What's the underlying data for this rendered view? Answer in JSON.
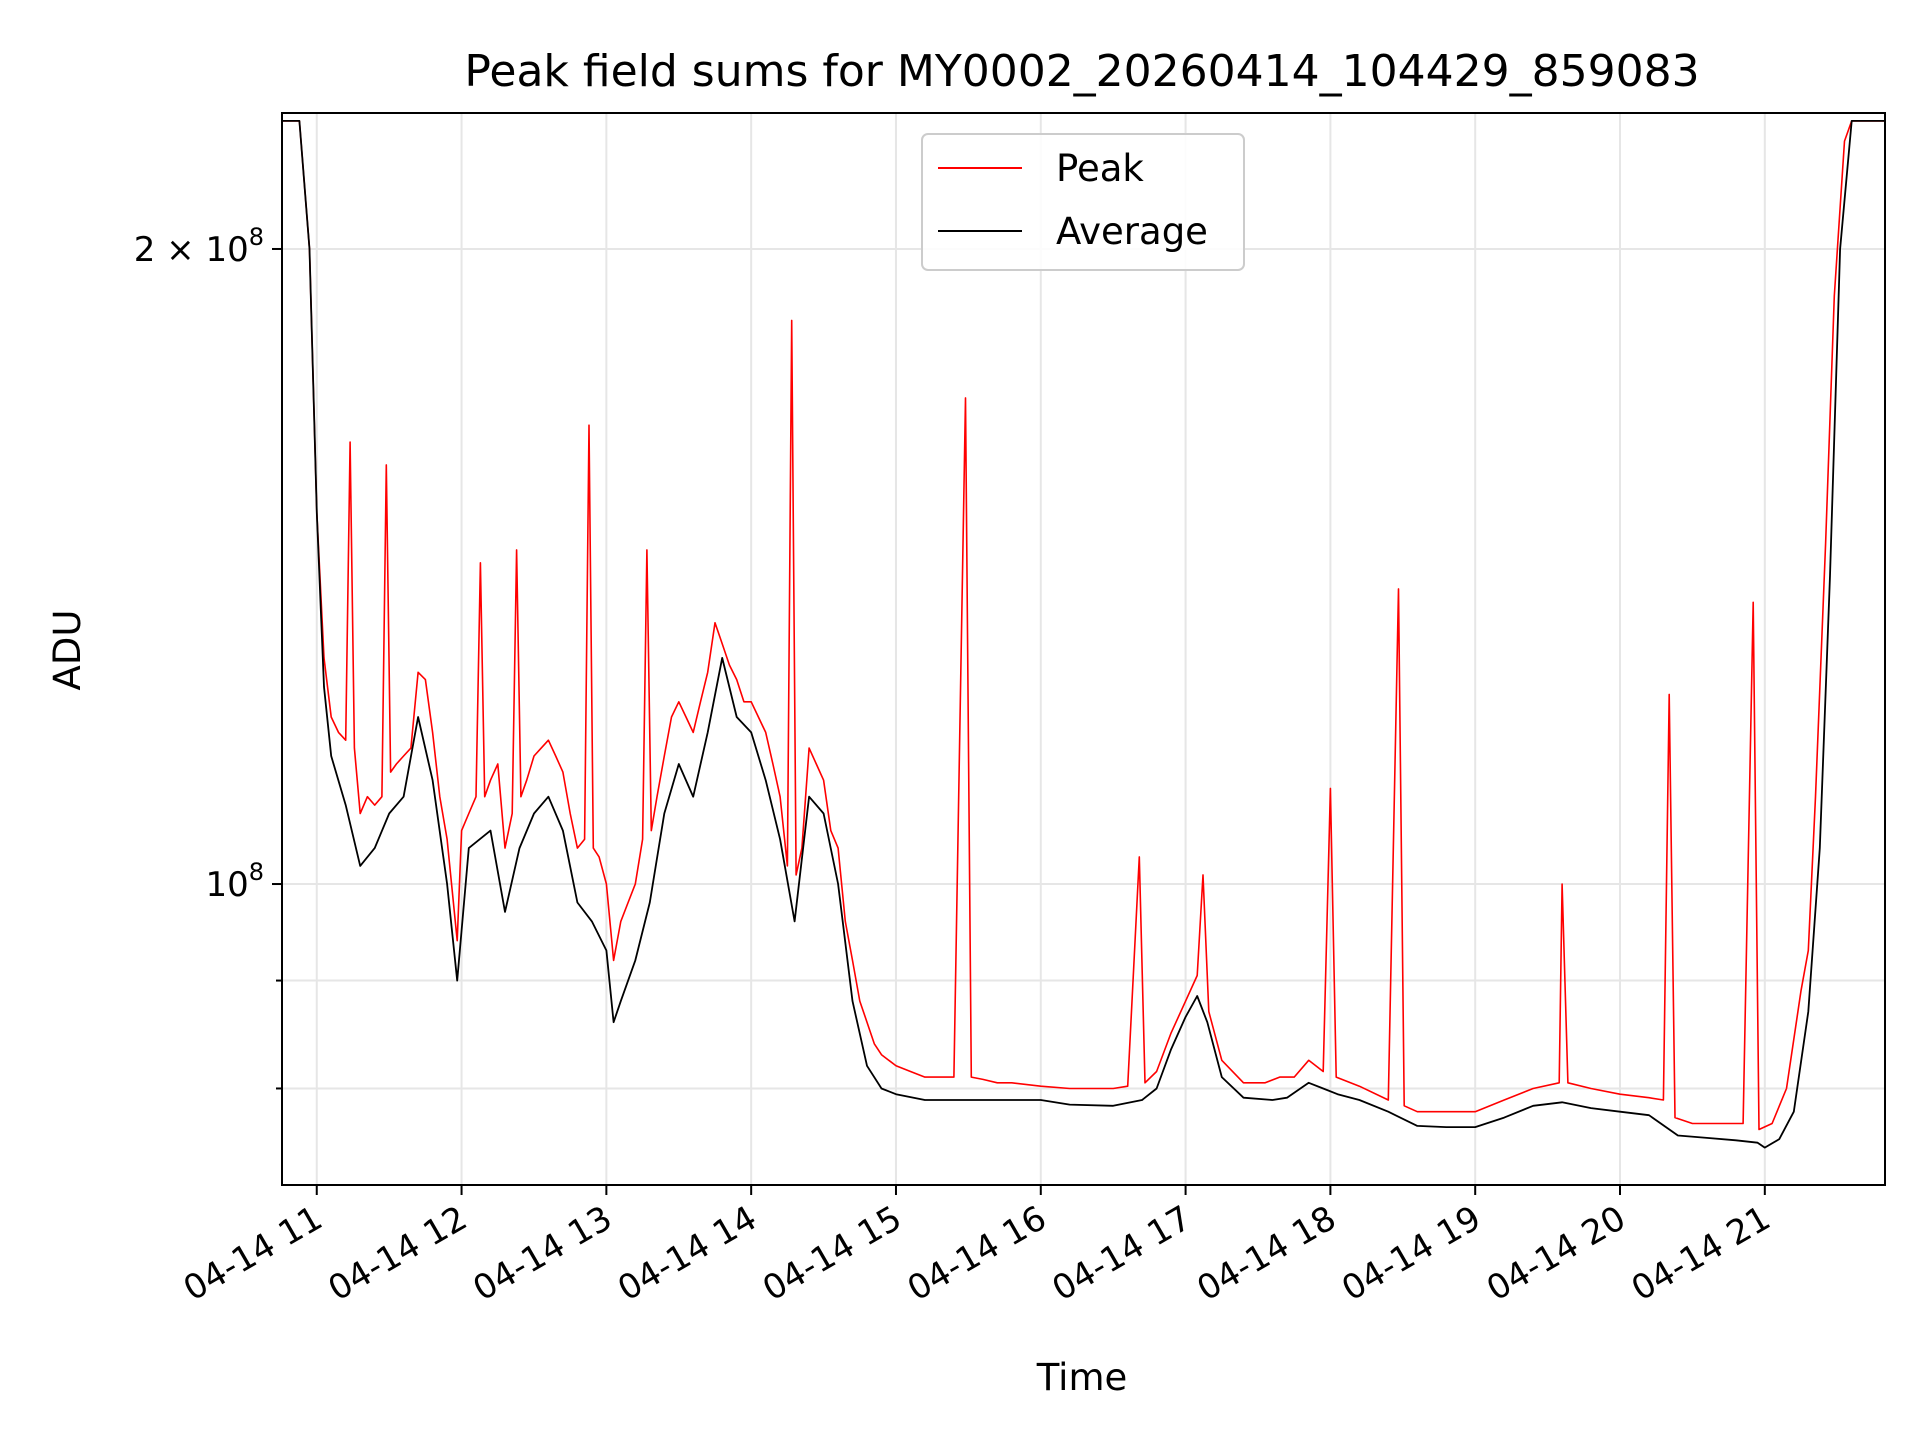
{
  "chart_data": {
    "type": "line",
    "title": "Peak field sums for MY0002_20260414_104429_859083",
    "xlabel": "Time",
    "ylabel": "ADU",
    "yscale": "log",
    "xlim": [
      10.76,
      21.83
    ],
    "ylim": [
      72000000,
      232000000
    ],
    "grid": true,
    "legend": {
      "location": "top-center",
      "entries": [
        "Peak",
        "Average"
      ]
    },
    "x_ticks": [
      {
        "value": 11,
        "label": "04-14 11"
      },
      {
        "value": 12,
        "label": "04-14 12"
      },
      {
        "value": 13,
        "label": "04-14 13"
      },
      {
        "value": 14,
        "label": "04-14 14"
      },
      {
        "value": 15,
        "label": "04-14 15"
      },
      {
        "value": 16,
        "label": "04-14 16"
      },
      {
        "value": 17,
        "label": "04-14 17"
      },
      {
        "value": 18,
        "label": "04-14 18"
      },
      {
        "value": 19,
        "label": "04-14 19"
      },
      {
        "value": 20,
        "label": "04-14 20"
      },
      {
        "value": 21,
        "label": "04-14 21"
      }
    ],
    "y_major_ticks": [
      {
        "value": 100000000,
        "base": "10",
        "exp": "8",
        "coef": ""
      },
      {
        "value": 200000000,
        "base": "10",
        "exp": "8",
        "coef": "2 × "
      }
    ],
    "y_minor_ticks": [
      80000000,
      90000000
    ],
    "series": [
      {
        "name": "Average",
        "color": "#000000",
        "points": [
          [
            10.76,
            230000000
          ],
          [
            10.88,
            230000000
          ],
          [
            10.95,
            200000000
          ],
          [
            11.0,
            150000000
          ],
          [
            11.05,
            124000000
          ],
          [
            11.1,
            115000000
          ],
          [
            11.2,
            109000000
          ],
          [
            11.3,
            102000000
          ],
          [
            11.4,
            104000000
          ],
          [
            11.5,
            108000000
          ],
          [
            11.6,
            110000000
          ],
          [
            11.7,
            120000000
          ],
          [
            11.8,
            112000000
          ],
          [
            11.9,
            100000000
          ],
          [
            11.97,
            90000000
          ],
          [
            12.05,
            104000000
          ],
          [
            12.2,
            106000000
          ],
          [
            12.3,
            97000000
          ],
          [
            12.4,
            104000000
          ],
          [
            12.5,
            108000000
          ],
          [
            12.6,
            110000000
          ],
          [
            12.7,
            106000000
          ],
          [
            12.8,
            98000000
          ],
          [
            12.9,
            96000000
          ],
          [
            13.0,
            93000000
          ],
          [
            13.05,
            86000000
          ],
          [
            13.1,
            88000000
          ],
          [
            13.2,
            92000000
          ],
          [
            13.3,
            98000000
          ],
          [
            13.4,
            108000000
          ],
          [
            13.5,
            114000000
          ],
          [
            13.6,
            110000000
          ],
          [
            13.7,
            118000000
          ],
          [
            13.8,
            128000000
          ],
          [
            13.9,
            120000000
          ],
          [
            14.0,
            118000000
          ],
          [
            14.1,
            112000000
          ],
          [
            14.2,
            105000000
          ],
          [
            14.3,
            96000000
          ],
          [
            14.4,
            110000000
          ],
          [
            14.5,
            108000000
          ],
          [
            14.6,
            100000000
          ],
          [
            14.7,
            88000000
          ],
          [
            14.8,
            82000000
          ],
          [
            14.9,
            80000000
          ],
          [
            15.0,
            79500000
          ],
          [
            15.2,
            79000000
          ],
          [
            15.4,
            79000000
          ],
          [
            15.6,
            79000000
          ],
          [
            15.8,
            79000000
          ],
          [
            16.0,
            79000000
          ],
          [
            16.2,
            78600000
          ],
          [
            16.5,
            78500000
          ],
          [
            16.7,
            79000000
          ],
          [
            16.8,
            80000000
          ],
          [
            16.9,
            83500000
          ],
          [
            17.0,
            86500000
          ],
          [
            17.08,
            88500000
          ],
          [
            17.15,
            86000000
          ],
          [
            17.25,
            81000000
          ],
          [
            17.4,
            79200000
          ],
          [
            17.6,
            79000000
          ],
          [
            17.7,
            79200000
          ],
          [
            17.85,
            80500000
          ],
          [
            17.95,
            80000000
          ],
          [
            18.05,
            79500000
          ],
          [
            18.2,
            79000000
          ],
          [
            18.4,
            78000000
          ],
          [
            18.6,
            76800000
          ],
          [
            18.8,
            76700000
          ],
          [
            19.0,
            76700000
          ],
          [
            19.2,
            77500000
          ],
          [
            19.4,
            78500000
          ],
          [
            19.6,
            78800000
          ],
          [
            19.8,
            78300000
          ],
          [
            20.0,
            78000000
          ],
          [
            20.2,
            77700000
          ],
          [
            20.4,
            76000000
          ],
          [
            20.6,
            75800000
          ],
          [
            20.8,
            75600000
          ],
          [
            20.95,
            75400000
          ],
          [
            21.0,
            75000000
          ],
          [
            21.1,
            75700000
          ],
          [
            21.2,
            78000000
          ],
          [
            21.3,
            87000000
          ],
          [
            21.38,
            104000000
          ],
          [
            21.45,
            140000000
          ],
          [
            21.52,
            200000000
          ],
          [
            21.6,
            230000000
          ],
          [
            21.83,
            230000000
          ]
        ]
      },
      {
        "name": "Peak",
        "color": "#ff0000",
        "points": [
          [
            10.76,
            230000000
          ],
          [
            10.88,
            230000000
          ],
          [
            10.95,
            200000000
          ],
          [
            11.0,
            150000000
          ],
          [
            11.05,
            128000000
          ],
          [
            11.1,
            120000000
          ],
          [
            11.15,
            118000000
          ],
          [
            11.2,
            117000000
          ],
          [
            11.23,
            162000000
          ],
          [
            11.26,
            116000000
          ],
          [
            11.3,
            108000000
          ],
          [
            11.35,
            110000000
          ],
          [
            11.4,
            109000000
          ],
          [
            11.45,
            110000000
          ],
          [
            11.48,
            158000000
          ],
          [
            11.51,
            113000000
          ],
          [
            11.55,
            114000000
          ],
          [
            11.6,
            115000000
          ],
          [
            11.65,
            116000000
          ],
          [
            11.7,
            126000000
          ],
          [
            11.75,
            125000000
          ],
          [
            11.8,
            118000000
          ],
          [
            11.85,
            110000000
          ],
          [
            11.9,
            105000000
          ],
          [
            11.97,
            94000000
          ],
          [
            12.0,
            106000000
          ],
          [
            12.05,
            108000000
          ],
          [
            12.1,
            110000000
          ],
          [
            12.13,
            142000000
          ],
          [
            12.16,
            110000000
          ],
          [
            12.2,
            112000000
          ],
          [
            12.25,
            114000000
          ],
          [
            12.3,
            104000000
          ],
          [
            12.35,
            108000000
          ],
          [
            12.38,
            144000000
          ],
          [
            12.41,
            110000000
          ],
          [
            12.45,
            112000000
          ],
          [
            12.5,
            115000000
          ],
          [
            12.55,
            116000000
          ],
          [
            12.6,
            117000000
          ],
          [
            12.65,
            115000000
          ],
          [
            12.7,
            113000000
          ],
          [
            12.75,
            108000000
          ],
          [
            12.8,
            104000000
          ],
          [
            12.85,
            105000000
          ],
          [
            12.88,
            165000000
          ],
          [
            12.91,
            104000000
          ],
          [
            12.95,
            103000000
          ],
          [
            13.0,
            100000000
          ],
          [
            13.05,
            92000000
          ],
          [
            13.1,
            96000000
          ],
          [
            13.15,
            98000000
          ],
          [
            13.2,
            100000000
          ],
          [
            13.25,
            105000000
          ],
          [
            13.28,
            144000000
          ],
          [
            13.31,
            106000000
          ],
          [
            13.35,
            110000000
          ],
          [
            13.4,
            115000000
          ],
          [
            13.45,
            120000000
          ],
          [
            13.5,
            122000000
          ],
          [
            13.55,
            120000000
          ],
          [
            13.6,
            118000000
          ],
          [
            13.65,
            122000000
          ],
          [
            13.7,
            126000000
          ],
          [
            13.75,
            133000000
          ],
          [
            13.8,
            130000000
          ],
          [
            13.85,
            127000000
          ],
          [
            13.9,
            125000000
          ],
          [
            13.95,
            122000000
          ],
          [
            14.0,
            122000000
          ],
          [
            14.05,
            120000000
          ],
          [
            14.1,
            118000000
          ],
          [
            14.15,
            114000000
          ],
          [
            14.2,
            110000000
          ],
          [
            14.25,
            102000000
          ],
          [
            14.28,
            185000000
          ],
          [
            14.31,
            101000000
          ],
          [
            14.35,
            104000000
          ],
          [
            14.4,
            116000000
          ],
          [
            14.45,
            114000000
          ],
          [
            14.5,
            112000000
          ],
          [
            14.55,
            106000000
          ],
          [
            14.6,
            104000000
          ],
          [
            14.65,
            96000000
          ],
          [
            14.7,
            92000000
          ],
          [
            14.75,
            88000000
          ],
          [
            14.8,
            86000000
          ],
          [
            14.85,
            84000000
          ],
          [
            14.9,
            83000000
          ],
          [
            15.0,
            82000000
          ],
          [
            15.1,
            81500000
          ],
          [
            15.2,
            81000000
          ],
          [
            15.3,
            81000000
          ],
          [
            15.4,
            81000000
          ],
          [
            15.48,
            170000000
          ],
          [
            15.52,
            81000000
          ],
          [
            15.6,
            80800000
          ],
          [
            15.7,
            80500000
          ],
          [
            15.8,
            80500000
          ],
          [
            16.0,
            80200000
          ],
          [
            16.2,
            80000000
          ],
          [
            16.4,
            80000000
          ],
          [
            16.5,
            80000000
          ],
          [
            16.6,
            80200000
          ],
          [
            16.68,
            103000000
          ],
          [
            16.72,
            80500000
          ],
          [
            16.8,
            81500000
          ],
          [
            16.9,
            85000000
          ],
          [
            17.0,
            88000000
          ],
          [
            17.08,
            90500000
          ],
          [
            17.12,
            101000000
          ],
          [
            17.16,
            87000000
          ],
          [
            17.25,
            82500000
          ],
          [
            17.4,
            80500000
          ],
          [
            17.55,
            80500000
          ],
          [
            17.65,
            81000000
          ],
          [
            17.75,
            81000000
          ],
          [
            17.85,
            82500000
          ],
          [
            17.95,
            81500000
          ],
          [
            18.0,
            111000000
          ],
          [
            18.04,
            81000000
          ],
          [
            18.2,
            80200000
          ],
          [
            18.4,
            79000000
          ],
          [
            18.47,
            138000000
          ],
          [
            18.51,
            78500000
          ],
          [
            18.6,
            78000000
          ],
          [
            18.8,
            78000000
          ],
          [
            19.0,
            78000000
          ],
          [
            19.2,
            79000000
          ],
          [
            19.4,
            80000000
          ],
          [
            19.58,
            80500000
          ],
          [
            19.6,
            100000000
          ],
          [
            19.64,
            80500000
          ],
          [
            19.8,
            80000000
          ],
          [
            20.0,
            79500000
          ],
          [
            20.2,
            79200000
          ],
          [
            20.3,
            79000000
          ],
          [
            20.34,
            123000000
          ],
          [
            20.38,
            77500000
          ],
          [
            20.5,
            77000000
          ],
          [
            20.7,
            77000000
          ],
          [
            20.85,
            77000000
          ],
          [
            20.92,
            136000000
          ],
          [
            20.96,
            76500000
          ],
          [
            21.05,
            77000000
          ],
          [
            21.15,
            80000000
          ],
          [
            21.25,
            89000000
          ],
          [
            21.3,
            93000000
          ],
          [
            21.35,
            110000000
          ],
          [
            21.42,
            145000000
          ],
          [
            21.48,
            190000000
          ],
          [
            21.55,
            225000000
          ],
          [
            21.6,
            230000000
          ],
          [
            21.83,
            230000000
          ]
        ]
      }
    ]
  }
}
